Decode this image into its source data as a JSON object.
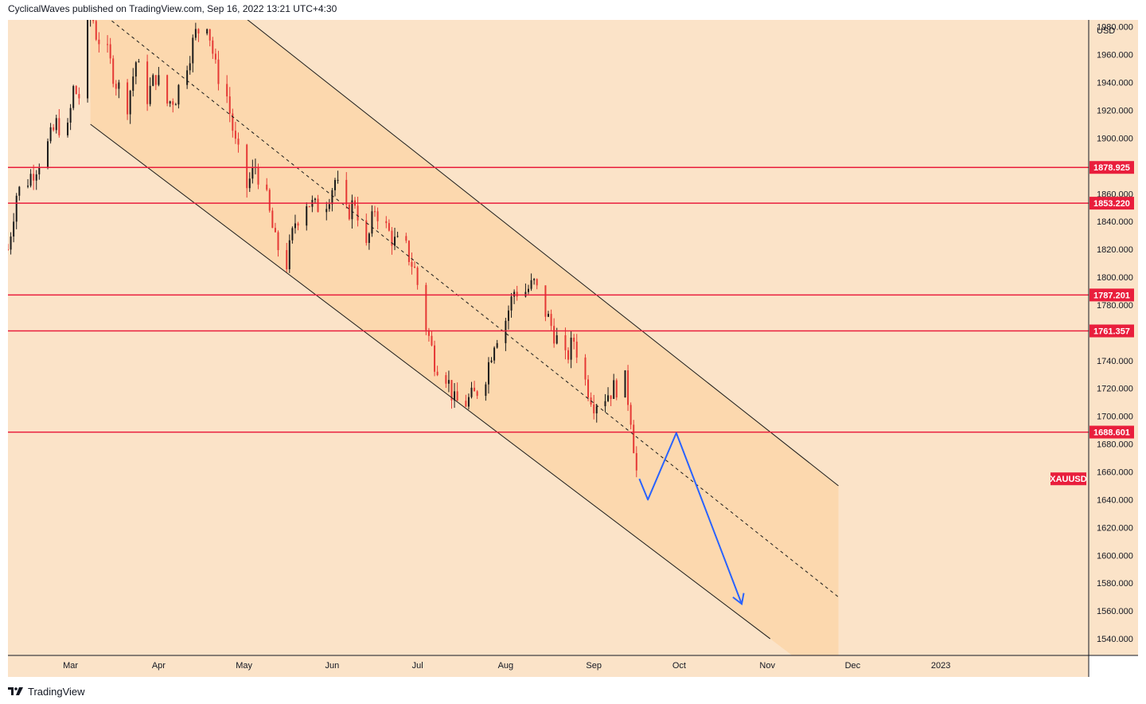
{
  "header": {
    "publish_info": "CyclicalWaves published on TradingView.com, Sep 16, 2022 13:21 UTC+4:30"
  },
  "footer": {
    "brand": "TradingView"
  },
  "colors": {
    "background": "#fbe3c8",
    "channel_fill": "#fcd8ae",
    "candle_up": "#1b1b1b",
    "candle_down": "#e53935",
    "level_line": "#e91e3c",
    "projection": "#2962ff"
  },
  "chart_data": {
    "type": "candlestick",
    "symbol": "XAUUSD",
    "currency": "USD",
    "ylim": [
      1528,
      1985
    ],
    "y_ticks": [
      1540,
      1560,
      1580,
      1600,
      1620,
      1640,
      1660,
      1680,
      1700,
      1720,
      1740,
      1760,
      1780,
      1800,
      1820,
      1840,
      1860,
      1880,
      1900,
      1920,
      1940,
      1960,
      1980
    ],
    "y_tick_labels": [
      "1540.000",
      "1560.000",
      "1580.000",
      "1600.000",
      "1620.000",
      "1640.000",
      "1660.000",
      "1680.000",
      "1700.000",
      "1720.000",
      "1740.000",
      "1760.000",
      "1780.000",
      "1800.000",
      "1820.000",
      "1840.000",
      "1860.000",
      "1880.000",
      "1900.000",
      "1920.000",
      "1940.000",
      "1960.000",
      "1980.000"
    ],
    "x_ticks": [
      {
        "label": "Mar",
        "date": "2022-03-01"
      },
      {
        "label": "Apr",
        "date": "2022-04-01"
      },
      {
        "label": "May",
        "date": "2022-05-01"
      },
      {
        "label": "Jun",
        "date": "2022-06-01"
      },
      {
        "label": "Jul",
        "date": "2022-07-01"
      },
      {
        "label": "Aug",
        "date": "2022-08-01"
      },
      {
        "label": "Sep",
        "date": "2022-09-01"
      },
      {
        "label": "Oct",
        "date": "2022-10-01"
      },
      {
        "label": "Nov",
        "date": "2022-11-01"
      },
      {
        "label": "Dec",
        "date": "2022-12-01"
      },
      {
        "label": "2023",
        "date": "2023-01-01"
      }
    ],
    "price_path": [
      [
        "2022-02-07",
        1820
      ],
      [
        "2022-02-10",
        1860
      ],
      [
        "2022-02-14",
        1870
      ],
      [
        "2022-02-17",
        1880
      ],
      [
        "2022-02-21",
        1895
      ],
      [
        "2022-02-24",
        1910
      ],
      [
        "2022-02-28",
        1905
      ],
      [
        "2022-03-02",
        1935
      ],
      [
        "2022-03-04",
        1930
      ],
      [
        "2022-03-08",
        1995
      ],
      [
        "2022-03-10",
        1975
      ],
      [
        "2022-03-14",
        1960
      ],
      [
        "2022-03-17",
        1940
      ],
      [
        "2022-03-21",
        1925
      ],
      [
        "2022-03-24",
        1955
      ],
      [
        "2022-03-28",
        1930
      ],
      [
        "2022-03-31",
        1945
      ],
      [
        "2022-04-04",
        1925
      ],
      [
        "2022-04-07",
        1930
      ],
      [
        "2022-04-11",
        1955
      ],
      [
        "2022-04-14",
        1975
      ],
      [
        "2022-04-18",
        1985
      ],
      [
        "2022-04-21",
        1950
      ],
      [
        "2022-04-25",
        1930
      ],
      [
        "2022-04-28",
        1895
      ],
      [
        "2022-05-02",
        1865
      ],
      [
        "2022-05-05",
        1880
      ],
      [
        "2022-05-09",
        1855
      ],
      [
        "2022-05-12",
        1825
      ],
      [
        "2022-05-16",
        1810
      ],
      [
        "2022-05-19",
        1840
      ],
      [
        "2022-05-23",
        1855
      ],
      [
        "2022-05-26",
        1850
      ],
      [
        "2022-05-30",
        1855
      ],
      [
        "2022-06-02",
        1870
      ],
      [
        "2022-06-06",
        1845
      ],
      [
        "2022-06-09",
        1855
      ],
      [
        "2022-06-13",
        1820
      ],
      [
        "2022-06-16",
        1850
      ],
      [
        "2022-06-20",
        1835
      ],
      [
        "2022-06-23",
        1825
      ],
      [
        "2022-06-27",
        1820
      ],
      [
        "2022-06-30",
        1805
      ],
      [
        "2022-07-04",
        1765
      ],
      [
        "2022-07-07",
        1740
      ],
      [
        "2022-07-11",
        1730
      ],
      [
        "2022-07-14",
        1710
      ],
      [
        "2022-07-18",
        1710
      ],
      [
        "2022-07-21",
        1715
      ],
      [
        "2022-07-25",
        1730
      ],
      [
        "2022-07-28",
        1755
      ],
      [
        "2022-08-01",
        1770
      ],
      [
        "2022-08-04",
        1790
      ],
      [
        "2022-08-08",
        1790
      ],
      [
        "2022-08-11",
        1795
      ],
      [
        "2022-08-15",
        1775
      ],
      [
        "2022-08-18",
        1760
      ],
      [
        "2022-08-22",
        1740
      ],
      [
        "2022-08-25",
        1755
      ],
      [
        "2022-08-29",
        1725
      ],
      [
        "2022-09-01",
        1710
      ],
      [
        "2022-09-05",
        1715
      ],
      [
        "2022-09-08",
        1720
      ],
      [
        "2022-09-12",
        1725
      ],
      [
        "2022-09-14",
        1700
      ],
      [
        "2022-09-16",
        1660
      ]
    ],
    "channel": {
      "upper": [
        [
          "2022-04-23",
          2000
        ],
        [
          "2022-11-26",
          1650
        ]
      ],
      "lower": [
        [
          "2022-03-08",
          1910
        ],
        [
          "2022-11-02",
          1540
        ]
      ],
      "midline": [
        [
          "2022-03-12",
          1990
        ],
        [
          "2022-11-26",
          1570
        ]
      ],
      "shaded_end": "2022-11-26"
    },
    "horizontal_levels": [
      {
        "value": 1878.925,
        "label": "1878.925"
      },
      {
        "value": 1853.22,
        "label": "1853.220"
      },
      {
        "value": 1787.201,
        "label": "1787.201"
      },
      {
        "value": 1761.357,
        "label": "1761.357"
      },
      {
        "value": 1688.601,
        "label": "1688.601"
      }
    ],
    "projection_path": [
      [
        "2022-09-17",
        1655
      ],
      [
        "2022-09-20",
        1640
      ],
      [
        "2022-09-30",
        1688
      ],
      [
        "2022-10-23",
        1565
      ]
    ],
    "symbol_tag_value": 1655,
    "currency_label": "USD"
  }
}
